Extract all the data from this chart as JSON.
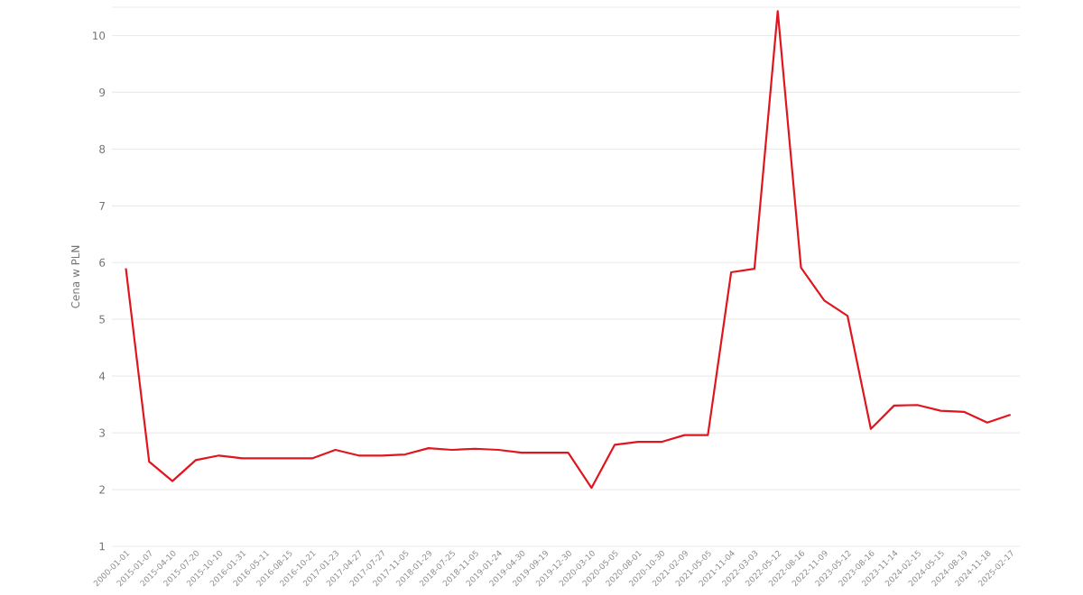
{
  "chart_data": {
    "type": "line",
    "ylabel": "Cena w PLN",
    "categories": [
      "2000-01-01",
      "2015-01-07",
      "2015-04-10",
      "2015-07-20",
      "2015-10-10",
      "2016-01-31",
      "2016-05-11",
      "2016-08-15",
      "2016-10-21",
      "2017-01-23",
      "2017-04-27",
      "2017-07-27",
      "2017-11-05",
      "2018-01-29",
      "2018-07-25",
      "2018-11-05",
      "2019-01-24",
      "2019-04-30",
      "2019-09-19",
      "2019-12-30",
      "2020-03-10",
      "2020-05-05",
      "2020-08-01",
      "2020-10-30",
      "2021-02-09",
      "2021-05-05",
      "2021-11-04",
      "2022-03-03",
      "2022-05-12",
      "2022-08-16",
      "2022-11-09",
      "2023-05-12",
      "2023-08-16",
      "2023-11-14",
      "2024-02-15",
      "2024-05-15",
      "2024-08-19",
      "2024-11-18",
      "2025-02-17"
    ],
    "series": [
      {
        "color": "#e0161f",
        "values": [
          5.9,
          2.49,
          2.15,
          2.52,
          2.6,
          2.55,
          2.55,
          2.55,
          2.55,
          2.7,
          2.6,
          2.6,
          2.62,
          2.73,
          2.7,
          2.72,
          2.7,
          2.65,
          2.65,
          2.65,
          2.03,
          2.79,
          2.84,
          2.84,
          2.96,
          2.96,
          5.83,
          5.89,
          10.43,
          5.91,
          5.33,
          5.06,
          3.07,
          3.48,
          3.49,
          3.39,
          3.37,
          3.18,
          3.32
        ]
      }
    ],
    "ylim": [
      1,
      10.5
    ],
    "yticks": [
      1,
      2,
      3,
      4,
      5,
      6,
      7,
      8,
      9,
      10
    ],
    "grid": "y",
    "marker": "none",
    "line_style": "solid"
  }
}
